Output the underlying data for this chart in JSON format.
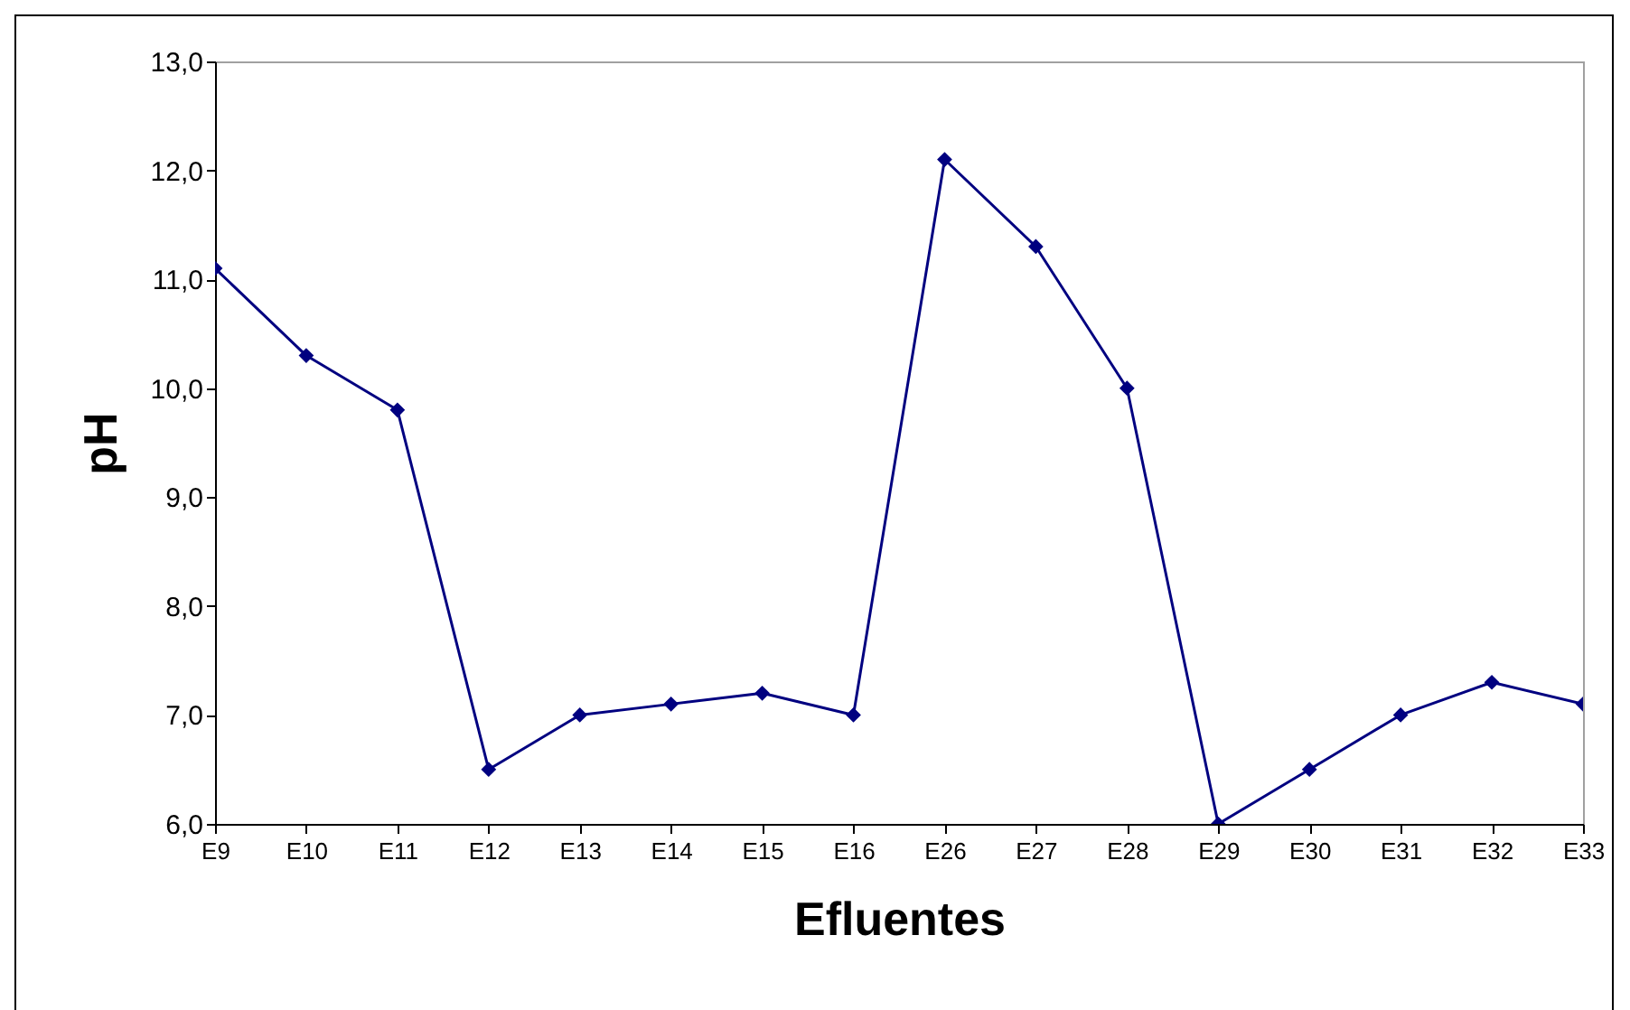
{
  "chart_data": {
    "type": "line",
    "xlabel": "Efluentes",
    "ylabel": "pH",
    "categories": [
      "E9",
      "E10",
      "E11",
      "E12",
      "E13",
      "E14",
      "E15",
      "E16",
      "E26",
      "E27",
      "E28",
      "E29",
      "E30",
      "E31",
      "E32",
      "E33"
    ],
    "series": [
      {
        "color": "#000080",
        "values": [
          11.1,
          10.3,
          9.8,
          6.5,
          7.0,
          7.1,
          7.2,
          7.0,
          12.1,
          11.3,
          10.0,
          6.0,
          6.5,
          7.0,
          7.3,
          7.1
        ]
      }
    ],
    "ylim": [
      6,
      13
    ],
    "yticks": [
      {
        "value": 6,
        "label": "6,0"
      },
      {
        "value": 7,
        "label": "7,0"
      },
      {
        "value": 8,
        "label": "8,0"
      },
      {
        "value": 9,
        "label": "9,0"
      },
      {
        "value": 10,
        "label": "10,0"
      },
      {
        "value": 11,
        "label": "11,0"
      },
      {
        "value": 12,
        "label": "12,0"
      },
      {
        "value": 13,
        "label": "13,0"
      }
    ],
    "marker": "diamond",
    "grid": false,
    "legend": false
  }
}
